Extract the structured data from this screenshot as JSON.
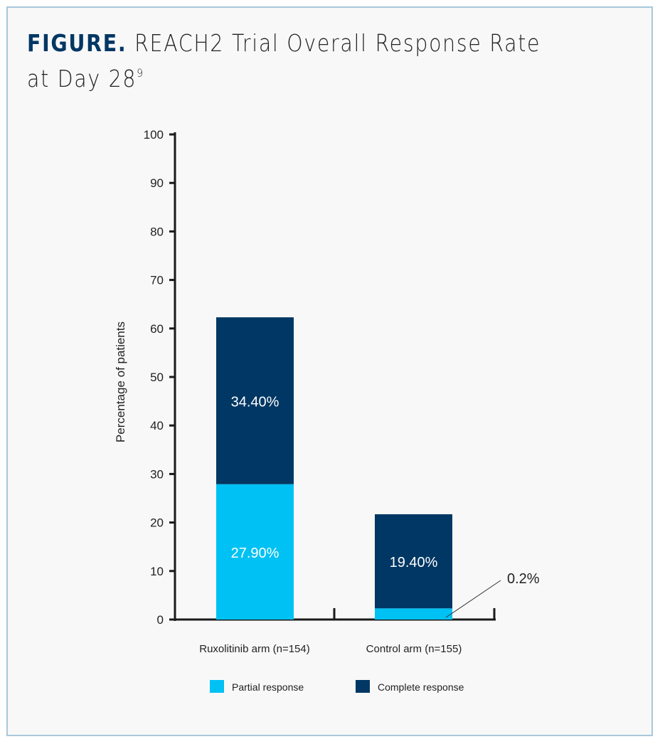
{
  "chart_data": {
    "type": "bar",
    "stacked": true,
    "title_prefix": "FIGURE.",
    "title": "REACH2 Trial Overall Response Rate at Day 28",
    "title_superscript": "9",
    "ylabel": "Percentage of patients",
    "xlabel": "",
    "ylim": [
      0,
      100
    ],
    "yticks": [
      "0",
      "10",
      "20",
      "30",
      "40",
      "50",
      "60",
      "70",
      "80",
      "90",
      "100"
    ],
    "categories": [
      "Ruxolitinib arm (n=154)",
      "Control arm (n=155)"
    ],
    "series": [
      {
        "name": "Partial response",
        "color": "#00c1f3",
        "values": [
          27.9,
          2.3
        ],
        "labels": [
          "27.90%",
          ""
        ]
      },
      {
        "name": "Complete response",
        "color": "#003764",
        "values": [
          34.4,
          19.4
        ],
        "labels": [
          "34.40%",
          "19.40%"
        ]
      }
    ],
    "annotation": "0.2%",
    "legend_position": "bottom"
  }
}
